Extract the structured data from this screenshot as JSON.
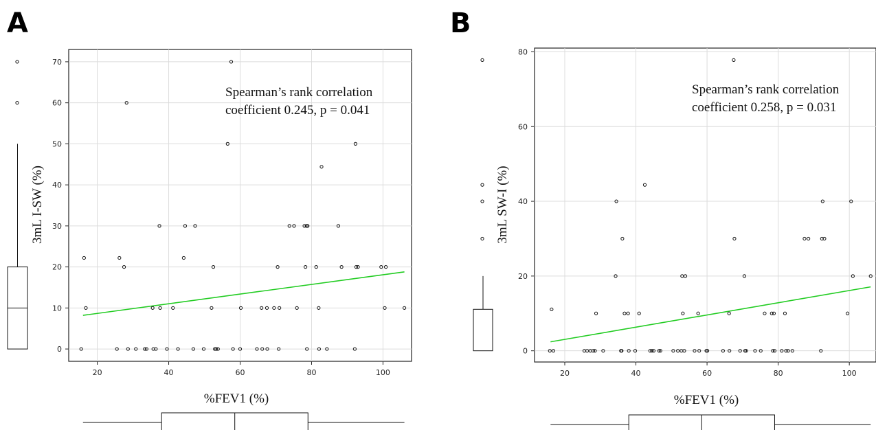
{
  "panels": [
    {
      "label": "A",
      "annotation_line1": "Spearman’s rank correlation",
      "annotation_line2": "coefficient 0.245, p = 0.041",
      "xlabel": "%FEV1 (%)",
      "ylabel": "3mL I-SW (%)"
    },
    {
      "label": "B",
      "annotation_line1": "Spearman’s rank correlation",
      "annotation_line2": "coefficient 0.258, p = 0.031",
      "xlabel": "%FEV1 (%)",
      "ylabel": "3mL SW-I (%)"
    }
  ],
  "chart_data": [
    {
      "type": "scatter",
      "title": "",
      "xlabel": "%FEV1 (%)",
      "ylabel": "3mL I-SW (%)",
      "xlim": [
        12,
        108
      ],
      "ylim": [
        -3,
        73
      ],
      "xticks": [
        20,
        40,
        60,
        80,
        100
      ],
      "yticks": [
        0,
        10,
        20,
        30,
        40,
        50,
        60,
        70
      ],
      "grid": true,
      "regression_line": {
        "x": [
          16,
          106
        ],
        "y": [
          8.2,
          18.8
        ],
        "color": "#22cc22"
      },
      "marginal_y_boxplot": {
        "min": 0,
        "q1": 0,
        "median": 10,
        "q3": 20,
        "upper_whisker": 50,
        "outliers": [
          60,
          70
        ]
      },
      "marginal_x_boxplot": {
        "min": 16,
        "q1": 38,
        "median": 58.5,
        "q3": 79,
        "max": 106
      },
      "points": [
        [
          15.5,
          0
        ],
        [
          16.3,
          22.2
        ],
        [
          16.8,
          10
        ],
        [
          25.5,
          0
        ],
        [
          26.2,
          22.2
        ],
        [
          27.5,
          20
        ],
        [
          28.2,
          60
        ],
        [
          28.6,
          0
        ],
        [
          30.8,
          0
        ],
        [
          33.3,
          0
        ],
        [
          33.8,
          0
        ],
        [
          35.5,
          10
        ],
        [
          35.7,
          0
        ],
        [
          36.4,
          0
        ],
        [
          37.4,
          30
        ],
        [
          37.6,
          10
        ],
        [
          39.5,
          0
        ],
        [
          41.2,
          10
        ],
        [
          42.6,
          0
        ],
        [
          44.2,
          22.2
        ],
        [
          44.6,
          30
        ],
        [
          46.9,
          0
        ],
        [
          47.4,
          30
        ],
        [
          49.8,
          0
        ],
        [
          52.0,
          10
        ],
        [
          52.5,
          20
        ],
        [
          52.9,
          0
        ],
        [
          53.3,
          0
        ],
        [
          53.8,
          0
        ],
        [
          56.5,
          50
        ],
        [
          57.5,
          70
        ],
        [
          58.0,
          0
        ],
        [
          60.2,
          10
        ],
        [
          60.0,
          0
        ],
        [
          64.7,
          0
        ],
        [
          66.0,
          10
        ],
        [
          66.2,
          0
        ],
        [
          67.5,
          10
        ],
        [
          67.6,
          0
        ],
        [
          69.5,
          10
        ],
        [
          70.5,
          20
        ],
        [
          70.8,
          0
        ],
        [
          71.0,
          10
        ],
        [
          73.8,
          30
        ],
        [
          75.1,
          30
        ],
        [
          75.9,
          10
        ],
        [
          78.0,
          30
        ],
        [
          78.3,
          20
        ],
        [
          78.6,
          30
        ],
        [
          78.7,
          0
        ],
        [
          78.9,
          30
        ],
        [
          81.3,
          20
        ],
        [
          82.1,
          0
        ],
        [
          82.0,
          10
        ],
        [
          82.8,
          44.4
        ],
        [
          84.3,
          0
        ],
        [
          87.5,
          30
        ],
        [
          88.4,
          20
        ],
        [
          92.1,
          0
        ],
        [
          92.3,
          50
        ],
        [
          92.5,
          20
        ],
        [
          93.0,
          20
        ],
        [
          99.5,
          20
        ],
        [
          100.5,
          10
        ],
        [
          100.8,
          20
        ],
        [
          106.0,
          10
        ]
      ]
    },
    {
      "type": "scatter",
      "title": "",
      "xlabel": "%FEV1 (%)",
      "ylabel": "3mL SW-I (%)",
      "xlim": [
        11.5,
        107.5
      ],
      "ylim": [
        -3,
        81
      ],
      "xticks": [
        20,
        40,
        60,
        80,
        100
      ],
      "yticks": [
        0,
        20,
        40,
        60,
        80
      ],
      "grid": true,
      "regression_line": {
        "x": [
          16,
          106
        ],
        "y": [
          2.4,
          17.1
        ],
        "color": "#22cc22"
      },
      "marginal_y_boxplot": {
        "min": 0,
        "q1": 0,
        "median": 0,
        "q3": 11.1,
        "upper_whisker": 20,
        "outliers": [
          30,
          40,
          44.4,
          77.8
        ]
      },
      "marginal_x_boxplot": {
        "min": 16,
        "q1": 38,
        "median": 58.5,
        "q3": 79,
        "max": 106
      },
      "points": [
        [
          15.8,
          0
        ],
        [
          16.3,
          11.1
        ],
        [
          16.8,
          0
        ],
        [
          25.5,
          0
        ],
        [
          26.3,
          0
        ],
        [
          27.2,
          0
        ],
        [
          28.0,
          0
        ],
        [
          28.5,
          0
        ],
        [
          28.8,
          10
        ],
        [
          30.8,
          0
        ],
        [
          34.3,
          20
        ],
        [
          34.5,
          40
        ],
        [
          35.8,
          0
        ],
        [
          36.2,
          30
        ],
        [
          36.0,
          0
        ],
        [
          36.8,
          10
        ],
        [
          37.8,
          10
        ],
        [
          38.0,
          0
        ],
        [
          39.8,
          0
        ],
        [
          40.9,
          10
        ],
        [
          42.5,
          44.4
        ],
        [
          44.0,
          0
        ],
        [
          44.5,
          0
        ],
        [
          45.0,
          0
        ],
        [
          46.5,
          0
        ],
        [
          46.9,
          0
        ],
        [
          50.5,
          0
        ],
        [
          51.8,
          0
        ],
        [
          52.8,
          0
        ],
        [
          53.0,
          20
        ],
        [
          53.2,
          10
        ],
        [
          53.6,
          0
        ],
        [
          53.9,
          20
        ],
        [
          56.5,
          0
        ],
        [
          57.5,
          10
        ],
        [
          57.8,
          0
        ],
        [
          59.8,
          0
        ],
        [
          60.1,
          0
        ],
        [
          64.5,
          0
        ],
        [
          66.2,
          10
        ],
        [
          66.3,
          0
        ],
        [
          67.5,
          77.8
        ],
        [
          67.7,
          30
        ],
        [
          69.3,
          0
        ],
        [
          70.5,
          20
        ],
        [
          70.7,
          0
        ],
        [
          71.0,
          0
        ],
        [
          73.5,
          0
        ],
        [
          75.1,
          0
        ],
        [
          76.2,
          10
        ],
        [
          78.2,
          10
        ],
        [
          78.5,
          0
        ],
        [
          78.8,
          10
        ],
        [
          79.0,
          0
        ],
        [
          81.0,
          0
        ],
        [
          81.9,
          10
        ],
        [
          82.2,
          0
        ],
        [
          82.8,
          0
        ],
        [
          84.0,
          0
        ],
        [
          87.4,
          30
        ],
        [
          88.5,
          30
        ],
        [
          92.0,
          0
        ],
        [
          92.3,
          30
        ],
        [
          92.5,
          40
        ],
        [
          93.0,
          30
        ],
        [
          99.5,
          10
        ],
        [
          100.5,
          40
        ],
        [
          101.0,
          20
        ],
        [
          106.0,
          20
        ]
      ]
    }
  ]
}
